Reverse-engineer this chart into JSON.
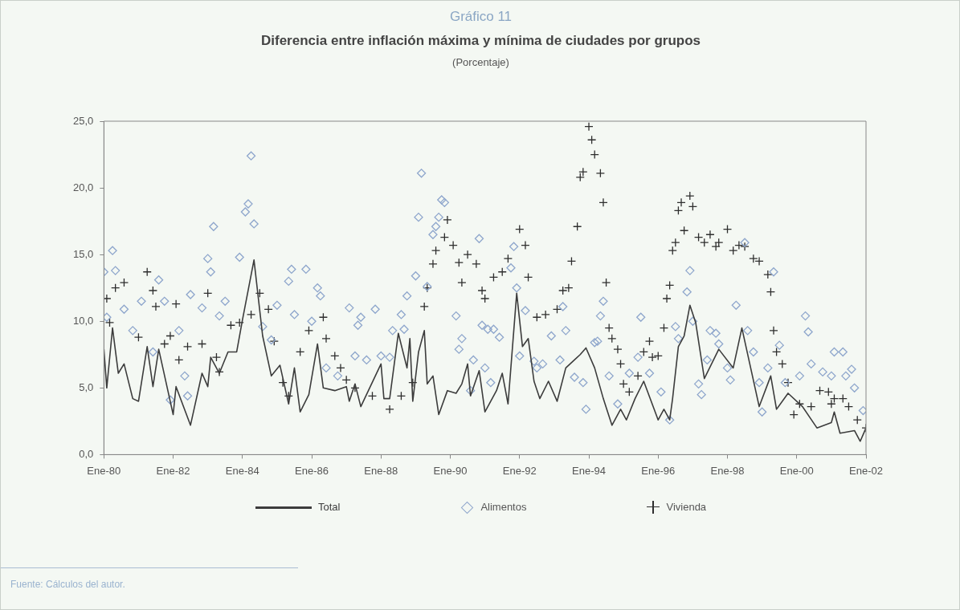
{
  "chart_data": {
    "type": "line",
    "title": "Diferencia entre inflación máxima y mínima de ciudades por grupos",
    "subtitle": "(Porcentaje)",
    "annotations": [
      "Gráfico 11",
      "Fuente: Cálculos del autor."
    ],
    "xlim": [
      "1980-01",
      "2002-01"
    ],
    "xticks": [
      {
        "value": "1980-01",
        "label": "Ene-80"
      },
      {
        "value": "1982-01",
        "label": "Ene-82"
      },
      {
        "value": "1984-01",
        "label": "Ene-84"
      },
      {
        "value": "1986-01",
        "label": "Ene-86"
      },
      {
        "value": "1988-01",
        "label": "Ene-88"
      },
      {
        "value": "1990-01",
        "label": "Ene-90"
      },
      {
        "value": "1992-01",
        "label": "Ene-92"
      },
      {
        "value": "1994-01",
        "label": "Ene-94"
      },
      {
        "value": "1996-01",
        "label": "Ene-96"
      },
      {
        "value": "1998-01",
        "label": "Ene-98"
      },
      {
        "value": "2000-01",
        "label": "Ene-00"
      },
      {
        "value": "2002-01",
        "label": "Ene-02"
      }
    ],
    "ylim": [
      0,
      25
    ],
    "yticks": [
      {
        "value": 0,
        "label": "0,0"
      },
      {
        "value": 5,
        "label": "5,0"
      },
      {
        "value": 10,
        "label": "10,0"
      },
      {
        "value": 15,
        "label": "15,0"
      },
      {
        "value": 20,
        "label": "20,0"
      },
      {
        "value": 25,
        "label": "25,0"
      }
    ],
    "legend": "bottom",
    "series": [
      {
        "name": "Total",
        "color": "#3c3c3c",
        "marker": "none",
        "x": [
          "1980-01",
          "1980-02",
          "1980-04",
          "1980-06",
          "1980-08",
          "1980-11",
          "1981-01",
          "1981-04",
          "1981-06",
          "1981-08",
          "1982-01",
          "1982-02",
          "1982-07",
          "1982-11",
          "1983-01",
          "1983-02",
          "1983-05",
          "1983-08",
          "1983-11",
          "1984-01",
          "1984-05",
          "1984-08",
          "1984-11",
          "1985-02",
          "1985-05",
          "1985-07",
          "1985-09",
          "1985-12",
          "1986-03",
          "1986-05",
          "1986-09",
          "1987-01",
          "1987-02",
          "1987-04",
          "1987-06",
          "1988-01",
          "1988-02",
          "1988-04",
          "1988-07",
          "1988-10",
          "1988-11",
          "1988-12",
          "1989-02",
          "1989-04",
          "1989-05",
          "1989-07",
          "1989-09",
          "1989-12",
          "1990-03",
          "1990-05",
          "1990-07",
          "1990-08",
          "1990-11",
          "1991-01",
          "1991-05",
          "1991-07",
          "1991-09",
          "1991-12",
          "1992-02",
          "1992-04",
          "1992-06",
          "1992-08",
          "1992-11",
          "1993-02",
          "1993-05",
          "1993-08",
          "1993-10",
          "1993-12",
          "1994-03",
          "1994-06",
          "1994-09",
          "1994-12",
          "1995-02",
          "1995-05",
          "1995-08",
          "1996-01",
          "1996-03",
          "1996-05",
          "1996-06",
          "1996-08",
          "1996-10",
          "1996-12",
          "1997-02",
          "1997-05",
          "1997-10",
          "1998-03",
          "1998-06",
          "1998-12",
          "1999-04",
          "1999-06",
          "1999-10",
          "2000-03",
          "2000-08",
          "2001-01",
          "2001-02",
          "2001-04",
          "2001-09",
          "2001-11",
          "2002-01"
        ],
        "values": [
          7.9,
          5.0,
          9.5,
          6.1,
          6.8,
          4.2,
          4.0,
          8.1,
          5.1,
          7.9,
          3.0,
          5.1,
          2.2,
          6.1,
          5.1,
          7.3,
          6.1,
          7.7,
          7.7,
          10.1,
          14.6,
          8.9,
          5.9,
          6.7,
          3.8,
          6.5,
          3.2,
          4.5,
          8.3,
          5.0,
          4.8,
          5.1,
          4.0,
          5.3,
          3.6,
          6.8,
          4.2,
          4.2,
          9.1,
          6.5,
          8.7,
          4.0,
          7.7,
          9.3,
          5.3,
          5.9,
          3.0,
          4.8,
          4.6,
          5.3,
          6.8,
          4.4,
          6.3,
          3.2,
          4.8,
          6.1,
          3.8,
          12.1,
          8.1,
          8.7,
          5.5,
          4.2,
          5.5,
          4.0,
          6.5,
          7.1,
          7.5,
          8.0,
          6.5,
          4.2,
          2.2,
          3.4,
          2.6,
          4.2,
          5.5,
          2.6,
          3.4,
          2.6,
          4.2,
          8.1,
          8.9,
          11.2,
          9.9,
          5.7,
          7.9,
          6.5,
          9.5,
          3.6,
          5.9,
          3.4,
          4.6,
          3.6,
          2.0,
          2.4,
          3.2,
          1.6,
          1.8,
          1.0,
          2.0
        ]
      },
      {
        "name": "Alimentos",
        "type": "scatter",
        "color": "#8ea6cc",
        "marker": "diamond",
        "x": [
          "1980-01",
          "1980-02",
          "1980-04",
          "1980-05",
          "1980-08",
          "1980-11",
          "1981-02",
          "1981-06",
          "1981-08",
          "1981-10",
          "1981-12",
          "1982-03",
          "1982-05",
          "1982-06",
          "1982-07",
          "1982-11",
          "1983-01",
          "1983-02",
          "1983-03",
          "1983-05",
          "1983-07",
          "1983-12",
          "1984-02",
          "1984-03",
          "1984-04",
          "1984-05",
          "1984-08",
          "1984-11",
          "1985-01",
          "1985-05",
          "1985-06",
          "1985-07",
          "1985-11",
          "1986-01",
          "1986-03",
          "1986-04",
          "1986-06",
          "1986-10",
          "1987-02",
          "1987-04",
          "1987-05",
          "1987-06",
          "1987-08",
          "1987-11",
          "1988-01",
          "1988-04",
          "1988-05",
          "1988-08",
          "1988-09",
          "1988-10",
          "1989-01",
          "1989-02",
          "1989-03",
          "1989-05",
          "1989-07",
          "1989-08",
          "1989-09",
          "1989-10",
          "1989-11",
          "1990-03",
          "1990-04",
          "1990-05",
          "1990-08",
          "1990-09",
          "1990-11",
          "1990-12",
          "1991-01",
          "1991-02",
          "1991-03",
          "1991-04",
          "1991-06",
          "1991-10",
          "1991-11",
          "1991-12",
          "1992-01",
          "1992-03",
          "1992-06",
          "1992-07",
          "1992-09",
          "1992-12",
          "1993-03",
          "1993-04",
          "1993-05",
          "1993-08",
          "1993-11",
          "1993-12",
          "1994-03",
          "1994-04",
          "1994-05",
          "1994-06",
          "1994-08",
          "1994-11",
          "1995-03",
          "1995-06",
          "1995-07",
          "1995-10",
          "1996-02",
          "1996-05",
          "1996-07",
          "1996-08",
          "1996-11",
          "1996-12",
          "1997-01",
          "1997-03",
          "1997-04",
          "1997-06",
          "1997-07",
          "1997-09",
          "1997-10",
          "1998-01",
          "1998-02",
          "1998-04",
          "1998-07",
          "1998-08",
          "1998-10",
          "1998-12",
          "1999-01",
          "1999-03",
          "1999-05",
          "1999-07",
          "1999-09",
          "2000-02",
          "2000-04",
          "2000-05",
          "2000-06",
          "2000-10",
          "2001-01",
          "2001-02",
          "2001-05",
          "2001-06",
          "2001-08",
          "2001-09",
          "2001-12"
        ],
        "values": [
          13.7,
          10.3,
          15.3,
          13.8,
          10.9,
          9.3,
          11.5,
          7.7,
          13.1,
          11.5,
          4.1,
          9.3,
          5.9,
          4.4,
          12.0,
          11.0,
          14.7,
          13.7,
          17.1,
          10.4,
          11.5,
          14.8,
          18.2,
          18.8,
          22.4,
          17.3,
          9.6,
          8.6,
          11.2,
          13.0,
          13.9,
          10.5,
          13.9,
          10.0,
          12.5,
          11.9,
          6.5,
          5.9,
          11.0,
          7.4,
          9.7,
          10.3,
          7.1,
          10.9,
          7.4,
          7.3,
          9.3,
          10.5,
          9.4,
          11.9,
          13.4,
          17.8,
          21.1,
          12.6,
          16.5,
          17.1,
          17.8,
          19.1,
          18.9,
          10.4,
          7.9,
          8.7,
          4.8,
          7.1,
          16.2,
          9.7,
          6.5,
          9.4,
          5.4,
          9.4,
          8.8,
          14.0,
          15.6,
          12.5,
          7.4,
          10.8,
          7.0,
          6.5,
          6.8,
          8.9,
          7.1,
          11.1,
          9.3,
          5.8,
          5.4,
          3.4,
          8.4,
          8.5,
          10.4,
          11.5,
          5.9,
          3.8,
          6.1,
          7.3,
          10.3,
          6.1,
          4.7,
          2.6,
          9.6,
          8.7,
          12.2,
          13.8,
          10.0,
          5.3,
          4.5,
          7.1,
          9.3,
          9.1,
          8.3,
          6.5,
          5.6,
          11.2,
          15.9,
          9.3,
          7.7,
          5.4,
          3.2,
          6.5,
          13.7,
          8.2,
          5.4,
          5.9,
          10.4,
          9.2,
          6.8,
          6.2,
          5.9,
          7.7,
          7.7,
          5.9,
          6.4,
          5.0,
          3.3
        ]
      },
      {
        "name": "Vivienda",
        "type": "scatter",
        "color": "#2e2e2e",
        "marker": "cross",
        "x": [
          "1980-02",
          "1980-03",
          "1980-05",
          "1980-08",
          "1981-01",
          "1981-04",
          "1981-06",
          "1981-07",
          "1981-10",
          "1981-12",
          "1982-02",
          "1982-03",
          "1982-06",
          "1982-11",
          "1983-01",
          "1983-04",
          "1983-05",
          "1983-09",
          "1983-12",
          "1984-04",
          "1984-07",
          "1984-10",
          "1984-12",
          "1985-03",
          "1985-05",
          "1985-09",
          "1985-12",
          "1986-05",
          "1986-06",
          "1986-09",
          "1986-11",
          "1987-01",
          "1987-04",
          "1987-10",
          "1988-04",
          "1988-08",
          "1988-12",
          "1989-04",
          "1989-05",
          "1989-07",
          "1989-08",
          "1989-11",
          "1989-12",
          "1990-02",
          "1990-04",
          "1990-05",
          "1990-07",
          "1990-10",
          "1990-12",
          "1991-01",
          "1991-04",
          "1991-07",
          "1991-09",
          "1992-01",
          "1992-03",
          "1992-04",
          "1992-07",
          "1992-10",
          "1993-02",
          "1993-04",
          "1993-06",
          "1993-07",
          "1993-09",
          "1993-10",
          "1993-11",
          "1994-01",
          "1994-02",
          "1994-03",
          "1994-05",
          "1994-06",
          "1994-07",
          "1994-08",
          "1994-09",
          "1994-11",
          "1994-12",
          "1995-01",
          "1995-03",
          "1995-06",
          "1995-08",
          "1995-10",
          "1995-11",
          "1996-01",
          "1996-03",
          "1996-04",
          "1996-05",
          "1996-06",
          "1996-07",
          "1996-08",
          "1996-09",
          "1996-10",
          "1996-12",
          "1997-01",
          "1997-03",
          "1997-05",
          "1997-07",
          "1997-09",
          "1997-10",
          "1998-01",
          "1998-03",
          "1998-05",
          "1998-07",
          "1998-10",
          "1998-12",
          "1999-03",
          "1999-04",
          "1999-05",
          "1999-06",
          "1999-08",
          "1999-10",
          "1999-12",
          "2000-02",
          "2000-06",
          "2000-09",
          "2000-12",
          "2001-01",
          "2001-02",
          "2001-05",
          "2001-07",
          "2001-10",
          "2002-01"
        ],
        "values": [
          11.7,
          9.9,
          12.5,
          12.9,
          8.8,
          13.7,
          12.3,
          11.1,
          8.3,
          8.9,
          11.3,
          7.1,
          8.1,
          8.3,
          12.1,
          7.3,
          6.2,
          9.7,
          9.9,
          10.5,
          12.1,
          10.9,
          8.5,
          5.4,
          4.4,
          7.7,
          9.3,
          10.3,
          8.7,
          7.4,
          6.5,
          5.6,
          5.0,
          4.4,
          3.4,
          4.4,
          5.4,
          11.1,
          12.5,
          14.3,
          15.3,
          16.3,
          17.6,
          15.7,
          14.4,
          12.9,
          15.0,
          14.3,
          12.3,
          11.7,
          13.3,
          13.7,
          14.7,
          16.9,
          15.7,
          13.3,
          10.3,
          10.5,
          10.9,
          12.3,
          12.5,
          14.5,
          17.1,
          20.8,
          21.2,
          24.6,
          23.6,
          22.5,
          21.1,
          18.9,
          12.9,
          9.5,
          8.7,
          7.9,
          6.8,
          5.3,
          4.7,
          5.9,
          7.7,
          8.5,
          7.3,
          7.4,
          9.5,
          11.7,
          12.7,
          15.3,
          15.9,
          18.3,
          18.9,
          16.8,
          19.4,
          18.6,
          16.3,
          15.9,
          16.5,
          15.6,
          15.9,
          16.9,
          15.3,
          15.7,
          15.6,
          14.7,
          14.5,
          13.5,
          12.2,
          9.3,
          7.7,
          6.8,
          5.4,
          3.0,
          3.8,
          3.6,
          4.8,
          4.7,
          3.8,
          4.2,
          4.2,
          3.6,
          2.6,
          2.0
        ]
      }
    ]
  }
}
